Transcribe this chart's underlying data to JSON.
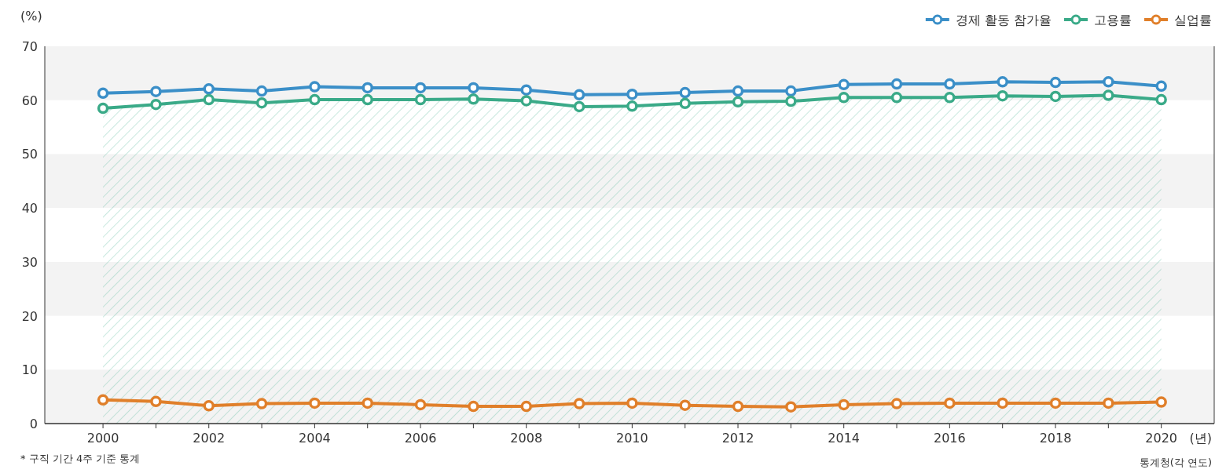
{
  "chart_data": {
    "type": "line",
    "ylabel": "(%)",
    "xlabel": "(년)",
    "x": [
      2000,
      2001,
      2002,
      2003,
      2004,
      2005,
      2006,
      2007,
      2008,
      2009,
      2010,
      2011,
      2012,
      2013,
      2014,
      2015,
      2016,
      2017,
      2018,
      2019,
      2020
    ],
    "series": [
      {
        "name": "경제 활동 참가율",
        "color": "#3b8fc8",
        "values": [
          61.3,
          61.6,
          62.1,
          61.7,
          62.5,
          62.3,
          62.3,
          62.3,
          61.9,
          61.0,
          61.1,
          61.4,
          61.7,
          61.7,
          62.9,
          63.0,
          63.0,
          63.4,
          63.3,
          63.4,
          62.6
        ]
      },
      {
        "name": "고용률",
        "color": "#3aaa88",
        "type": "area",
        "values": [
          58.5,
          59.2,
          60.1,
          59.5,
          60.1,
          60.1,
          60.1,
          60.2,
          59.9,
          58.8,
          58.9,
          59.4,
          59.7,
          59.8,
          60.5,
          60.5,
          60.5,
          60.8,
          60.7,
          60.9,
          60.1
        ]
      },
      {
        "name": "실업률",
        "color": "#e07f2a",
        "values": [
          4.4,
          4.1,
          3.3,
          3.7,
          3.8,
          3.8,
          3.5,
          3.2,
          3.2,
          3.7,
          3.8,
          3.4,
          3.2,
          3.1,
          3.5,
          3.7,
          3.8,
          3.8,
          3.8,
          3.8,
          4.0
        ]
      }
    ],
    "xlim": [
      1998.9,
      2021
    ],
    "xticks": [
      2000,
      {
        "value": 2001,
        "label": null
      },
      2002,
      {
        "value": 2003,
        "label": null
      },
      2004,
      {
        "value": 2005,
        "label": null
      },
      2006,
      {
        "value": 2007,
        "label": null
      },
      2008,
      {
        "value": 2009,
        "label": null
      },
      2010,
      {
        "value": 2011,
        "label": null
      },
      2012,
      {
        "value": 2013,
        "label": null
      },
      2014,
      {
        "value": 2015,
        "label": null
      },
      2016,
      {
        "value": 2017,
        "label": null
      },
      2018,
      {
        "value": 2019,
        "label": null
      },
      2020
    ],
    "ylim": [
      0,
      70
    ],
    "yticks": [
      0,
      10,
      20,
      30,
      40,
      50,
      60,
      70
    ],
    "bands": [
      {
        "axis": "y",
        "from": 0,
        "to": 10,
        "color": "#f3f3f3"
      },
      {
        "axis": "y",
        "from": 20,
        "to": 30,
        "color": "#f3f3f3"
      },
      {
        "axis": "y",
        "from": 40,
        "to": 50,
        "color": "#f3f3f3"
      },
      {
        "axis": "y",
        "from": 60,
        "to": 70,
        "color": "#f3f3f3"
      }
    ],
    "annotations": [
      "* 구직 기간 4주 기준 통계",
      "통계청(각 연도)"
    ],
    "legend": "top right",
    "marker": "circle",
    "grid": false
  }
}
